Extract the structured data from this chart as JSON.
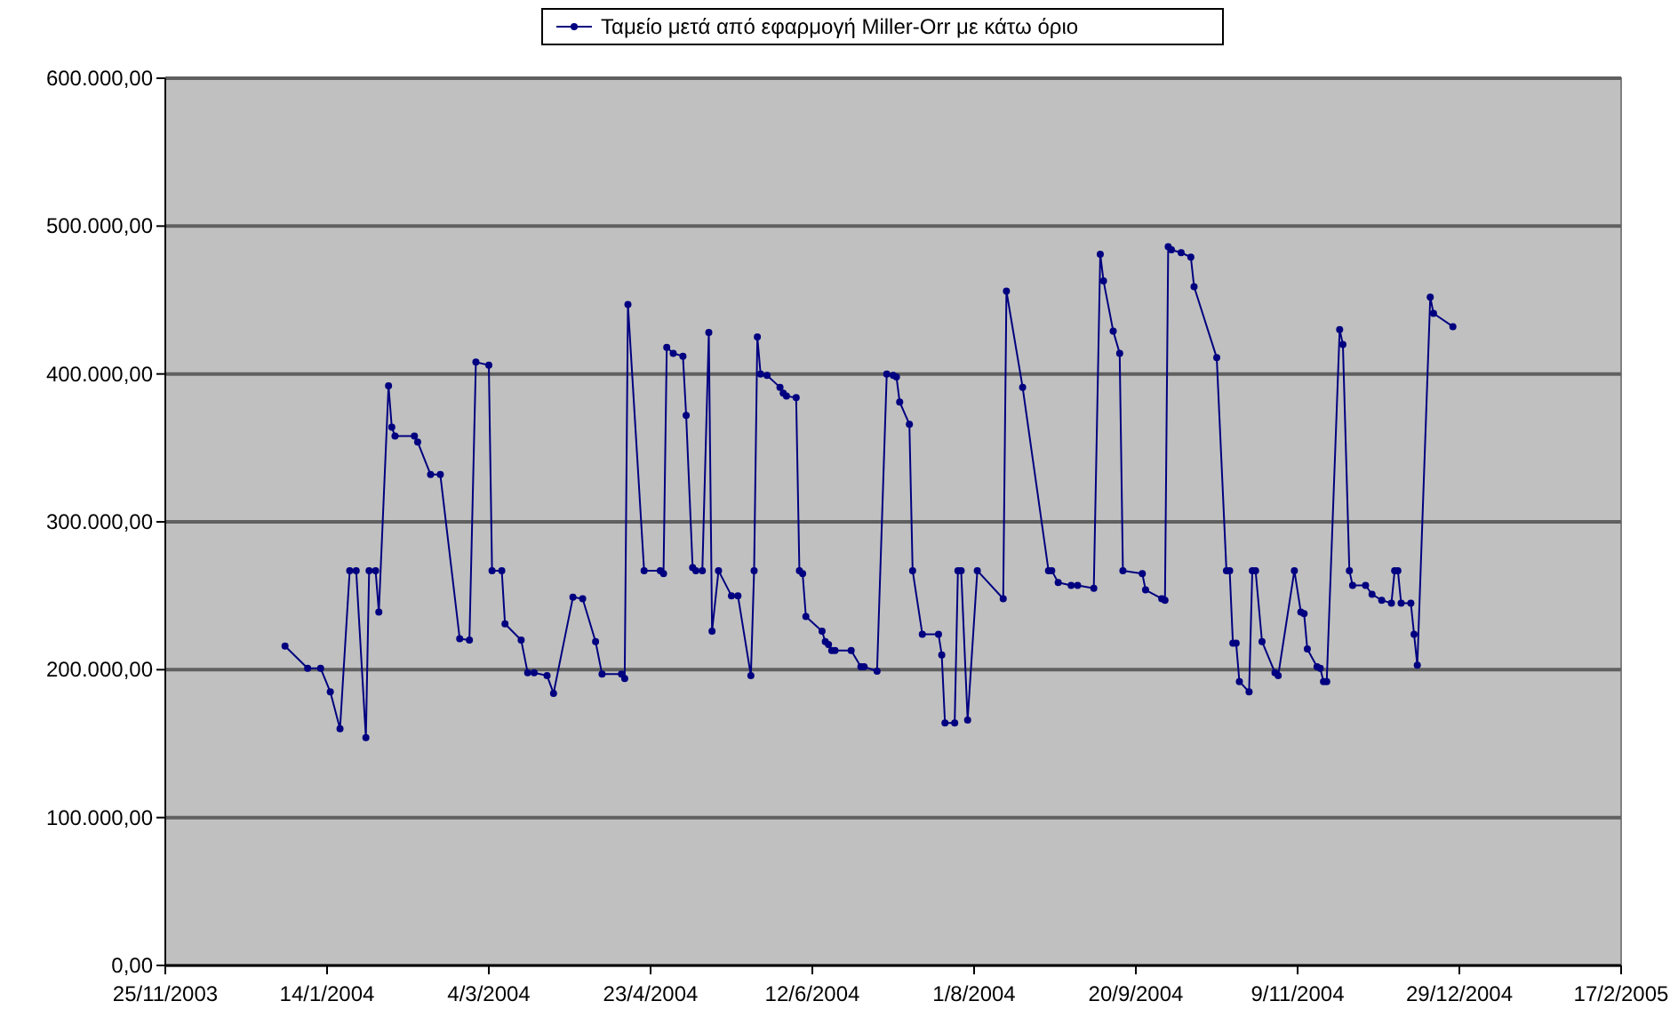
{
  "chart_data": {
    "type": "line",
    "legend": "top",
    "grid": "y",
    "marker": "circle",
    "line_style": "solid",
    "xlim": [
      "2003-11-25",
      "2005-02-17"
    ],
    "xticks": [
      {
        "value": "2003-11-25",
        "label": "25/11/2003"
      },
      {
        "value": "2004-01-14",
        "label": "14/1/2004"
      },
      {
        "value": "2004-03-04",
        "label": "4/3/2004"
      },
      {
        "value": "2004-04-23",
        "label": "23/4/2004"
      },
      {
        "value": "2004-06-12",
        "label": "12/6/2004"
      },
      {
        "value": "2004-08-01",
        "label": "1/8/2004"
      },
      {
        "value": "2004-09-20",
        "label": "20/9/2004"
      },
      {
        "value": "2004-11-09",
        "label": "9/11/2004"
      },
      {
        "value": "2004-12-29",
        "label": "29/12/2004"
      },
      {
        "value": "2005-02-17",
        "label": "17/2/2005"
      }
    ],
    "ylim": [
      0,
      600000
    ],
    "yticks": [
      {
        "value": 0,
        "label": "0,00"
      },
      {
        "value": 100000,
        "label": "100.000,00"
      },
      {
        "value": 200000,
        "label": "200.000,00"
      },
      {
        "value": 300000,
        "label": "300.000,00"
      },
      {
        "value": 400000,
        "label": "400.000,00"
      },
      {
        "value": 500000,
        "label": "500.000,00"
      },
      {
        "value": 600000,
        "label": "600.000,00"
      }
    ],
    "x": [
      "2004-01-01",
      "2004-01-08",
      "2004-01-12",
      "2004-01-15",
      "2004-01-18",
      "2004-01-21",
      "2004-01-23",
      "2004-01-26",
      "2004-01-27",
      "2004-01-29",
      "2004-01-30",
      "2004-02-02",
      "2004-02-03",
      "2004-02-04",
      "2004-02-10",
      "2004-02-11",
      "2004-02-15",
      "2004-02-18",
      "2004-02-24",
      "2004-02-27",
      "2004-02-29",
      "2004-03-04",
      "2004-03-05",
      "2004-03-08",
      "2004-03-09",
      "2004-03-14",
      "2004-03-16",
      "2004-03-18",
      "2004-03-22",
      "2004-03-24",
      "2004-03-30",
      "2004-04-02",
      "2004-04-06",
      "2004-04-08",
      "2004-04-14",
      "2004-04-15",
      "2004-04-16",
      "2004-04-21",
      "2004-04-26",
      "2004-04-27",
      "2004-04-28",
      "2004-04-30",
      "2004-05-03",
      "2004-05-04",
      "2004-05-06",
      "2004-05-07",
      "2004-05-09",
      "2004-05-11",
      "2004-05-12",
      "2004-05-14",
      "2004-05-18",
      "2004-05-20",
      "2004-05-24",
      "2004-05-25",
      "2004-05-26",
      "2004-05-27",
      "2004-05-29",
      "2004-06-02",
      "2004-06-03",
      "2004-06-04",
      "2004-06-07",
      "2004-06-08",
      "2004-06-09",
      "2004-06-10",
      "2004-06-15",
      "2004-06-16",
      "2004-06-17",
      "2004-06-18",
      "2004-06-19",
      "2004-06-24",
      "2004-06-27",
      "2004-06-28",
      "2004-07-02",
      "2004-07-05",
      "2004-07-07",
      "2004-07-08",
      "2004-07-09",
      "2004-07-12",
      "2004-07-13",
      "2004-07-16",
      "2004-07-21",
      "2004-07-22",
      "2004-07-23",
      "2004-07-26",
      "2004-07-27",
      "2004-07-28",
      "2004-07-30",
      "2004-08-02",
      "2004-08-10",
      "2004-08-11",
      "2004-08-16",
      "2004-08-24",
      "2004-08-25",
      "2004-08-27",
      "2004-08-31",
      "2004-09-02",
      "2004-09-07",
      "2004-09-09",
      "2004-09-10",
      "2004-09-13",
      "2004-09-15",
      "2004-09-16",
      "2004-09-22",
      "2004-09-23",
      "2004-09-28",
      "2004-09-29",
      "2004-09-30",
      "2004-10-01",
      "2004-10-04",
      "2004-10-07",
      "2004-10-08",
      "2004-10-15",
      "2004-10-18",
      "2004-10-19",
      "2004-10-20",
      "2004-10-21",
      "2004-10-22",
      "2004-10-25",
      "2004-10-26",
      "2004-10-27",
      "2004-10-29",
      "2004-11-02",
      "2004-11-03",
      "2004-11-08",
      "2004-11-10",
      "2004-11-11",
      "2004-11-12",
      "2004-11-15",
      "2004-11-16",
      "2004-11-17",
      "2004-11-18",
      "2004-11-22",
      "2004-11-23",
      "2004-11-25",
      "2004-11-26",
      "2004-11-30",
      "2004-12-02",
      "2004-12-05",
      "2004-12-08",
      "2004-12-09",
      "2004-12-10",
      "2004-12-11",
      "2004-12-14",
      "2004-12-15",
      "2004-12-16",
      "2004-12-20",
      "2004-12-21",
      "2004-12-27"
    ],
    "series": [
      {
        "name": "Ταμείο μετά από εφαρμογή Miller-Orr με κάτω όριο",
        "color": "#000080",
        "values": [
          216000,
          201000,
          201000,
          185000,
          160000,
          267000,
          267000,
          154000,
          267000,
          267000,
          239000,
          392000,
          364000,
          358000,
          358000,
          354000,
          332000,
          332000,
          221000,
          220000,
          408000,
          406000,
          267000,
          267000,
          231000,
          220000,
          198000,
          198000,
          196000,
          184000,
          249000,
          248000,
          219000,
          197000,
          197000,
          194000,
          447000,
          267000,
          267000,
          265000,
          418000,
          414000,
          412000,
          372000,
          269000,
          267000,
          267000,
          428000,
          226000,
          267000,
          250000,
          250000,
          196000,
          267000,
          425000,
          400000,
          399000,
          391000,
          387000,
          385000,
          384000,
          267000,
          265000,
          236000,
          226000,
          219000,
          217000,
          213000,
          213000,
          213000,
          202000,
          202000,
          199000,
          400000,
          399000,
          398000,
          381000,
          366000,
          267000,
          224000,
          224000,
          210000,
          164000,
          164000,
          267000,
          267000,
          166000,
          267000,
          248000,
          456000,
          391000,
          267000,
          267000,
          259000,
          257000,
          257000,
          255000,
          481000,
          463000,
          429000,
          414000,
          267000,
          265000,
          254000,
          248000,
          247000,
          486000,
          484000,
          482000,
          479000,
          459000,
          411000,
          267000,
          267000,
          218000,
          218000,
          192000,
          185000,
          267000,
          267000,
          219000,
          198000,
          196000,
          267000,
          239000,
          238000,
          214000,
          202000,
          201000,
          192000,
          192000,
          430000,
          420000,
          267000,
          257000,
          257000,
          251000,
          247000,
          245000,
          267000,
          267000,
          245000,
          245000,
          224000,
          203000,
          452000,
          441000,
          432000
        ]
      }
    ]
  }
}
